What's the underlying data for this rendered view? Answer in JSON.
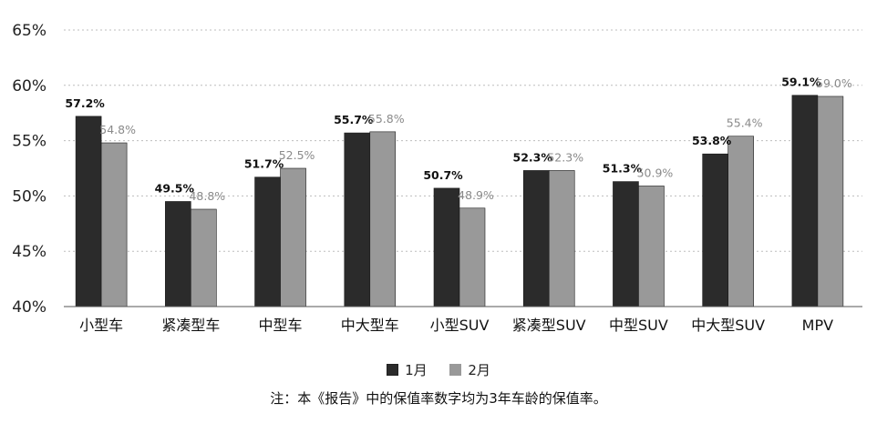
{
  "chart_data": {
    "type": "bar",
    "categories": [
      "小型车",
      "紧凑型车",
      "中型车",
      "中大型车",
      "小型SUV",
      "紧凑型SUV",
      "中型SUV",
      "中大型SUV",
      "MPV"
    ],
    "series": [
      {
        "name": "1月",
        "values": [
          57.2,
          49.5,
          51.7,
          55.7,
          50.7,
          52.3,
          51.3,
          53.8,
          59.1
        ],
        "labels": [
          "57.2%",
          "49.5%",
          "51.7%",
          "55.7%",
          "50.7%",
          "52.3%",
          "51.3%",
          "53.8%",
          "59.1%"
        ],
        "color": "#2b2b2b"
      },
      {
        "name": "2月",
        "values": [
          54.8,
          48.8,
          52.5,
          55.8,
          48.9,
          52.3,
          50.9,
          55.4,
          59.0
        ],
        "labels": [
          "54.8%",
          "48.8%",
          "52.5%",
          "55.8%",
          "48.9%",
          "52.3%",
          "50.9%",
          "55.4%",
          "59.0%"
        ],
        "color": "#999999"
      }
    ],
    "yticks": [
      "40%",
      "45%",
      "50%",
      "55%",
      "60%",
      "65%"
    ],
    "ylim": [
      40,
      65
    ],
    "grid": "horizontal-dotted",
    "legend": "bottom",
    "note": "注：本《报告》中的保值率数字均为3年车龄的保值率。"
  }
}
